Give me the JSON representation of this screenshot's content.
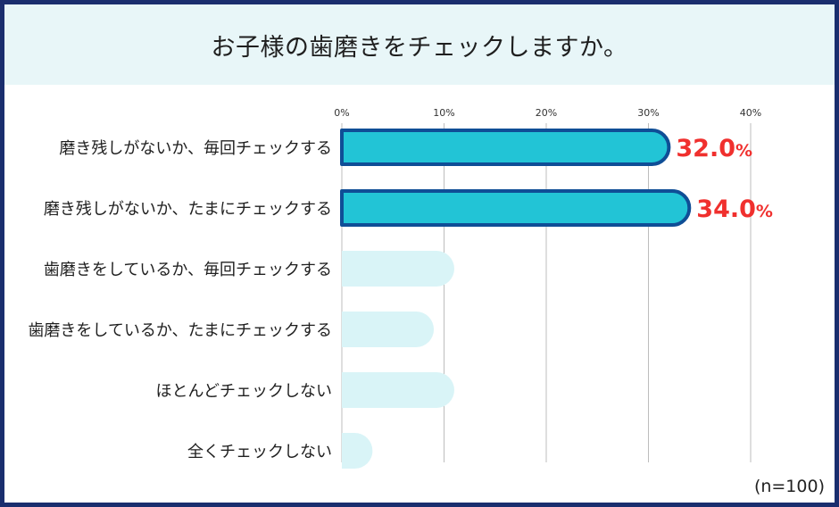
{
  "title": "お子様の歯磨きをチェックしますか。",
  "note": "(n=100)",
  "colors": {
    "highlight_fill": "#22c4d6",
    "highlight_stroke": "#0f4e96",
    "pale_fill": "#d9f4f7",
    "value_label": "#f0302e",
    "grid": "#bdbdbd"
  },
  "chart_data": {
    "type": "bar",
    "orientation": "horizontal",
    "title": "お子様の歯磨きをチェックしますか。",
    "xlabel": "",
    "ylabel": "",
    "xlim": [
      0,
      40
    ],
    "ticks": [
      0,
      10,
      20,
      30,
      40
    ],
    "tick_labels": [
      "0%",
      "10%",
      "20%",
      "30%",
      "40%"
    ],
    "grid": true,
    "categories": [
      "磨き残しがないか、毎回チェックする",
      "磨き残しがないか、たまにチェックする",
      "歯磨きをしているか、毎回チェックする",
      "歯磨きをしているか、たまにチェックする",
      "ほとんどチェックしない",
      "全くチェックしない"
    ],
    "values": [
      32.0,
      34.0,
      11.0,
      9.0,
      11.0,
      3.0
    ],
    "highlighted": [
      true,
      true,
      false,
      false,
      false,
      false
    ],
    "value_labels": [
      {
        "number": "32.0",
        "unit": "%"
      },
      {
        "number": "34.0",
        "unit": "%"
      },
      null,
      null,
      null,
      null
    ]
  }
}
